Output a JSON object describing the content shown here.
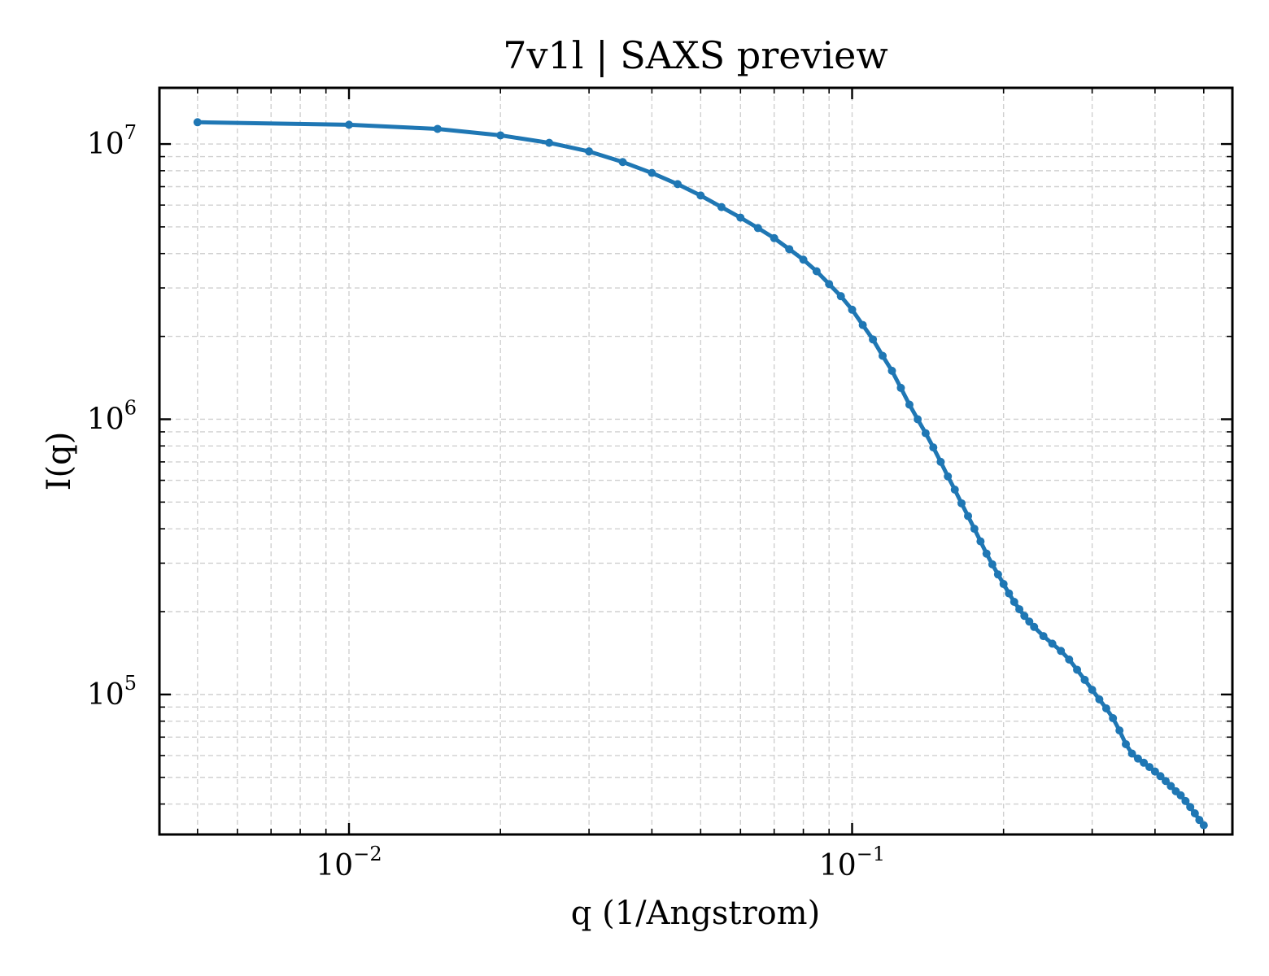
{
  "chart_data": {
    "type": "line",
    "title": "7v1l | SAXS preview",
    "xlabel": "q (1/Angstrom)",
    "ylabel": "I(q)",
    "xscale": "log",
    "yscale": "log",
    "xlim": [
      0.0042,
      0.57
    ],
    "ylim": [
      31000,
      16000000
    ],
    "grid": true,
    "line_color": "#1f77b4",
    "x_ticks": [
      {
        "base": "10",
        "exp": "−2",
        "value": 0.01
      },
      {
        "base": "10",
        "exp": "−1",
        "value": 0.1
      }
    ],
    "y_ticks": [
      {
        "base": "10",
        "exp": "5",
        "value": 100000
      },
      {
        "base": "10",
        "exp": "6",
        "value": 1000000
      },
      {
        "base": "10",
        "exp": "7",
        "value": 10000000
      }
    ],
    "series": [
      {
        "x": [
          0.005,
          0.01,
          0.015,
          0.02,
          0.025,
          0.03,
          0.035,
          0.04,
          0.045,
          0.05,
          0.055,
          0.06,
          0.065,
          0.07,
          0.075,
          0.08,
          0.085,
          0.09,
          0.095,
          0.1,
          0.105,
          0.11,
          0.115,
          0.12,
          0.125,
          0.13,
          0.135,
          0.14,
          0.145,
          0.15,
          0.155,
          0.16,
          0.165,
          0.17,
          0.175,
          0.18,
          0.185,
          0.19,
          0.195,
          0.2,
          0.205,
          0.21,
          0.215,
          0.22,
          0.225,
          0.23,
          0.24,
          0.25,
          0.26,
          0.27,
          0.28,
          0.29,
          0.3,
          0.31,
          0.32,
          0.33,
          0.34,
          0.35,
          0.36,
          0.37,
          0.38,
          0.39,
          0.4,
          0.41,
          0.42,
          0.43,
          0.44,
          0.45,
          0.46,
          0.47,
          0.48,
          0.49,
          0.5
        ],
        "y": [
          12000000,
          11750000,
          11350000,
          10750000,
          10100000,
          9400000,
          8600000,
          7850000,
          7150000,
          6500000,
          5900000,
          5400000,
          4950000,
          4550000,
          4150000,
          3800000,
          3450000,
          3100000,
          2800000,
          2500000,
          2200000,
          1950000,
          1700000,
          1500000,
          1300000,
          1130000,
          1000000,
          890000,
          790000,
          700000,
          620000,
          555000,
          495000,
          445000,
          400000,
          360000,
          325000,
          297000,
          273000,
          252000,
          233000,
          217000,
          204000,
          193000,
          184000,
          176000,
          163000,
          153000,
          144000,
          134000,
          123000,
          113000,
          104000,
          96000,
          89000,
          82000,
          74000,
          66000,
          61000,
          58500,
          56500,
          54500,
          52500,
          50500,
          48500,
          46500,
          44500,
          43000,
          41000,
          39000,
          37000,
          35000,
          33500
        ]
      }
    ]
  }
}
